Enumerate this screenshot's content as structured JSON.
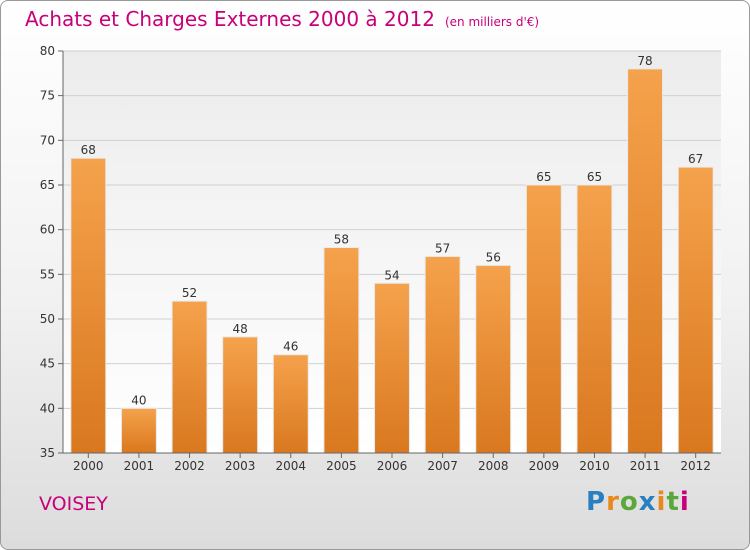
{
  "header": {
    "title": "Achats et Charges Externes 2000 à 2012",
    "subtitle": "(en milliers d'€)"
  },
  "commune": "VOISEY",
  "logo": {
    "text": "Proxiti",
    "letter_colors": [
      "#2a7fc1",
      "#e8891d",
      "#5aa83a",
      "#2a7fc1",
      "#e8891d",
      "#5aa83a",
      "#c8007a"
    ]
  },
  "colors": {
    "bar_top": "#f5a24c",
    "bar_bottom": "#d9781f",
    "title": "#c8007a"
  },
  "chart_data": {
    "type": "bar",
    "categories": [
      "2000",
      "2001",
      "2002",
      "2003",
      "2004",
      "2005",
      "2006",
      "2007",
      "2008",
      "2009",
      "2010",
      "2011",
      "2012"
    ],
    "values": [
      68,
      40,
      52,
      48,
      46,
      58,
      54,
      57,
      56,
      65,
      65,
      78,
      67
    ],
    "ylim": [
      35,
      80
    ],
    "yticks": [
      35,
      40,
      45,
      50,
      55,
      60,
      65,
      70,
      75,
      80
    ],
    "grid": true,
    "xlabel": "",
    "ylabel": ""
  }
}
